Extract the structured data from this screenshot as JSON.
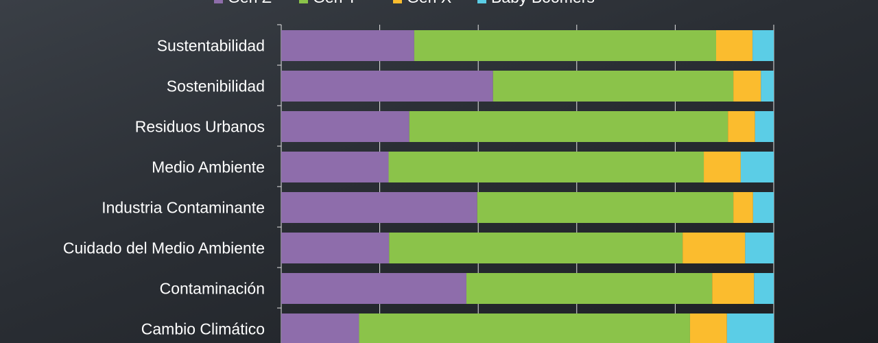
{
  "chart_data": {
    "type": "bar",
    "orientation": "horizontal",
    "stacked": true,
    "percent": true,
    "xlim": [
      0,
      100
    ],
    "grid": true,
    "legend_position": "top",
    "categories": [
      "Sustentabilidad",
      "Sostenibilidad",
      "Residuos Urbanos",
      "Medio Ambiente",
      "Industria Contaminante",
      "Cuidado del Medio Ambiente",
      "Contaminación",
      "Cambio Climático"
    ],
    "series": [
      {
        "name": "Gen Z",
        "color": "#8e6dab",
        "values": [
          27.0,
          43.0,
          26.0,
          21.8,
          39.8,
          21.9,
          37.6,
          15.8
        ]
      },
      {
        "name": "Gen Y",
        "color": "#8bc34a",
        "values": [
          61.3,
          48.8,
          64.7,
          64.0,
          52.0,
          59.6,
          49.9,
          67.2
        ]
      },
      {
        "name": "Gen X",
        "color": "#fbbc2e",
        "values": [
          7.4,
          5.6,
          5.5,
          7.5,
          4.0,
          12.7,
          8.5,
          7.5
        ]
      },
      {
        "name": "Baby Boomers",
        "color": "#5bcde6",
        "values": [
          4.3,
          2.6,
          3.8,
          6.7,
          4.2,
          5.8,
          4.0,
          9.5
        ]
      }
    ]
  }
}
